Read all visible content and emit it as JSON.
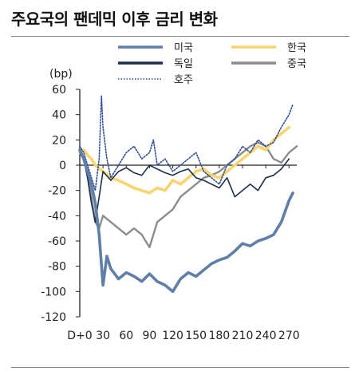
{
  "title": "주요국의 팬데믹 이후 금리 변화",
  "chart_data": {
    "type": "line",
    "title": "주요국의 팬데믹 이후 금리 변화",
    "ylabel": "(bp)",
    "ylim": [
      -120,
      60
    ],
    "yticks": [
      60,
      40,
      20,
      0,
      -20,
      -40,
      -60,
      -80,
      -100,
      -120
    ],
    "xlim": [
      0,
      280
    ],
    "xticks": [
      {
        "v": 0,
        "label": "D+0"
      },
      {
        "v": 30,
        "label": "30"
      },
      {
        "v": 60,
        "label": "60"
      },
      {
        "v": 90,
        "label": "90"
      },
      {
        "v": 120,
        "label": "120"
      },
      {
        "v": 150,
        "label": "150"
      },
      {
        "v": 180,
        "label": "180"
      },
      {
        "v": 210,
        "label": "210"
      },
      {
        "v": 240,
        "label": "240"
      },
      {
        "v": 270,
        "label": "270"
      }
    ],
    "legend_position": "top",
    "series": [
      {
        "name": "미국",
        "color": "#5f7fa8",
        "style": "solid",
        "width": 3.6,
        "x": [
          0,
          5,
          10,
          15,
          20,
          25,
          30,
          35,
          40,
          50,
          60,
          70,
          80,
          90,
          100,
          110,
          120,
          130,
          140,
          150,
          160,
          170,
          180,
          190,
          200,
          210,
          220,
          230,
          240,
          250,
          260,
          270,
          275
        ],
        "y": [
          12,
          5,
          -5,
          -15,
          -30,
          -55,
          -95,
          -72,
          -82,
          -90,
          -85,
          -88,
          -92,
          -86,
          -92,
          -95,
          -100,
          -90,
          -85,
          -88,
          -83,
          -78,
          -75,
          -73,
          -68,
          -62,
          -64,
          -60,
          -58,
          -55,
          -45,
          -28,
          -22
        ]
      },
      {
        "name": "한국",
        "color": "#f7d56c",
        "style": "solid",
        "width": 3.6,
        "x": [
          0,
          5,
          10,
          15,
          20,
          30,
          40,
          50,
          60,
          70,
          80,
          90,
          100,
          110,
          120,
          130,
          140,
          150,
          160,
          170,
          180,
          190,
          200,
          210,
          220,
          230,
          240,
          250,
          260,
          270
        ],
        "y": [
          10,
          12,
          8,
          5,
          0,
          -5,
          -10,
          -12,
          -15,
          -18,
          -20,
          -22,
          -18,
          -20,
          -12,
          -15,
          -10,
          -5,
          -3,
          -8,
          -10,
          -5,
          0,
          5,
          10,
          15,
          12,
          20,
          25,
          30
        ]
      },
      {
        "name": "독일",
        "color": "#1b2f4d",
        "style": "solid",
        "width": 1.6,
        "x": [
          0,
          5,
          10,
          15,
          20,
          25,
          30,
          40,
          50,
          60,
          70,
          80,
          90,
          100,
          110,
          120,
          130,
          140,
          150,
          160,
          170,
          180,
          190,
          200,
          210,
          220,
          230,
          240,
          250,
          260,
          270
        ],
        "y": [
          10,
          5,
          -10,
          -30,
          -45,
          -25,
          -5,
          -12,
          -5,
          -2,
          -6,
          -8,
          0,
          -3,
          -6,
          -8,
          -5,
          -3,
          -10,
          -12,
          -15,
          -18,
          -10,
          -25,
          -20,
          -15,
          -20,
          -10,
          -8,
          -3,
          5
        ]
      },
      {
        "name": "중국",
        "color": "#8c8c8c",
        "style": "solid",
        "width": 2.4,
        "x": [
          0,
          5,
          10,
          15,
          20,
          25,
          30,
          40,
          50,
          60,
          70,
          80,
          90,
          100,
          110,
          120,
          130,
          140,
          150,
          160,
          170,
          180,
          190,
          200,
          210,
          220,
          230,
          240,
          250,
          260,
          270,
          280
        ],
        "y": [
          10,
          5,
          -5,
          -25,
          -45,
          -50,
          -40,
          -45,
          -50,
          -55,
          -50,
          -55,
          -65,
          -45,
          -40,
          -35,
          -25,
          -20,
          -15,
          -10,
          -8,
          -5,
          0,
          5,
          10,
          15,
          18,
          15,
          5,
          2,
          10,
          15
        ]
      },
      {
        "name": "호주",
        "color": "#2d4a9a",
        "style": "dotted",
        "width": 1.6,
        "x": [
          0,
          5,
          10,
          15,
          20,
          25,
          28,
          30,
          35,
          40,
          50,
          60,
          70,
          80,
          90,
          95,
          100,
          110,
          120,
          130,
          140,
          150,
          160,
          170,
          180,
          190,
          200,
          210,
          220,
          230,
          240,
          250,
          260,
          270,
          275
        ],
        "y": [
          15,
          10,
          0,
          -10,
          -20,
          5,
          55,
          30,
          5,
          -10,
          0,
          10,
          15,
          5,
          10,
          20,
          0,
          5,
          -5,
          0,
          5,
          10,
          -5,
          -10,
          -15,
          0,
          5,
          15,
          10,
          20,
          15,
          18,
          30,
          40,
          48
        ]
      }
    ]
  }
}
